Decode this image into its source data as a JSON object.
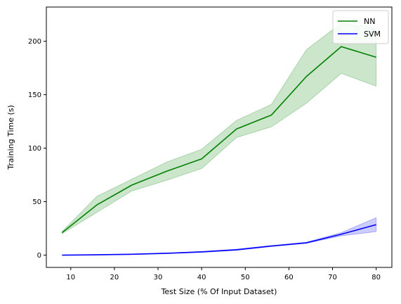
{
  "chart_data": {
    "type": "line",
    "title": "",
    "xlabel": "Test Size (% Of Input Dataset)",
    "ylabel": "Training Time (s)",
    "xlim": [
      4.4,
      83.6
    ],
    "ylim": [
      -11.5,
      232
    ],
    "xticks": [
      10,
      20,
      30,
      40,
      50,
      60,
      70,
      80
    ],
    "yticks": [
      0,
      50,
      100,
      150,
      200
    ],
    "grid": false,
    "legend_placement": "top-right",
    "x": [
      8,
      16,
      24,
      32,
      40,
      48,
      56,
      64,
      72,
      80
    ],
    "series": [
      {
        "name": "NN",
        "color": "#008000",
        "band_color": "#008000",
        "values": [
          21,
          47,
          65.5,
          78.5,
          90,
          118,
          131,
          167,
          195,
          185
        ],
        "lower": [
          20,
          40,
          60,
          70,
          81,
          110,
          120,
          142,
          170,
          158
        ],
        "upper": [
          22,
          55,
          71,
          87,
          99,
          126,
          141,
          192,
          217,
          212
        ]
      },
      {
        "name": "SVM",
        "color": "#0000ff",
        "band_color": "#0000ff",
        "values": [
          0,
          0.3,
          0.8,
          1.7,
          3,
          5,
          8.5,
          11.5,
          19.5,
          28.5
        ],
        "lower": [
          0,
          0.2,
          0.6,
          1.4,
          2.6,
          4.5,
          8,
          11,
          18,
          22
        ],
        "upper": [
          0,
          0.4,
          1,
          2,
          3.4,
          5.5,
          9,
          12,
          21,
          35
        ]
      }
    ]
  }
}
